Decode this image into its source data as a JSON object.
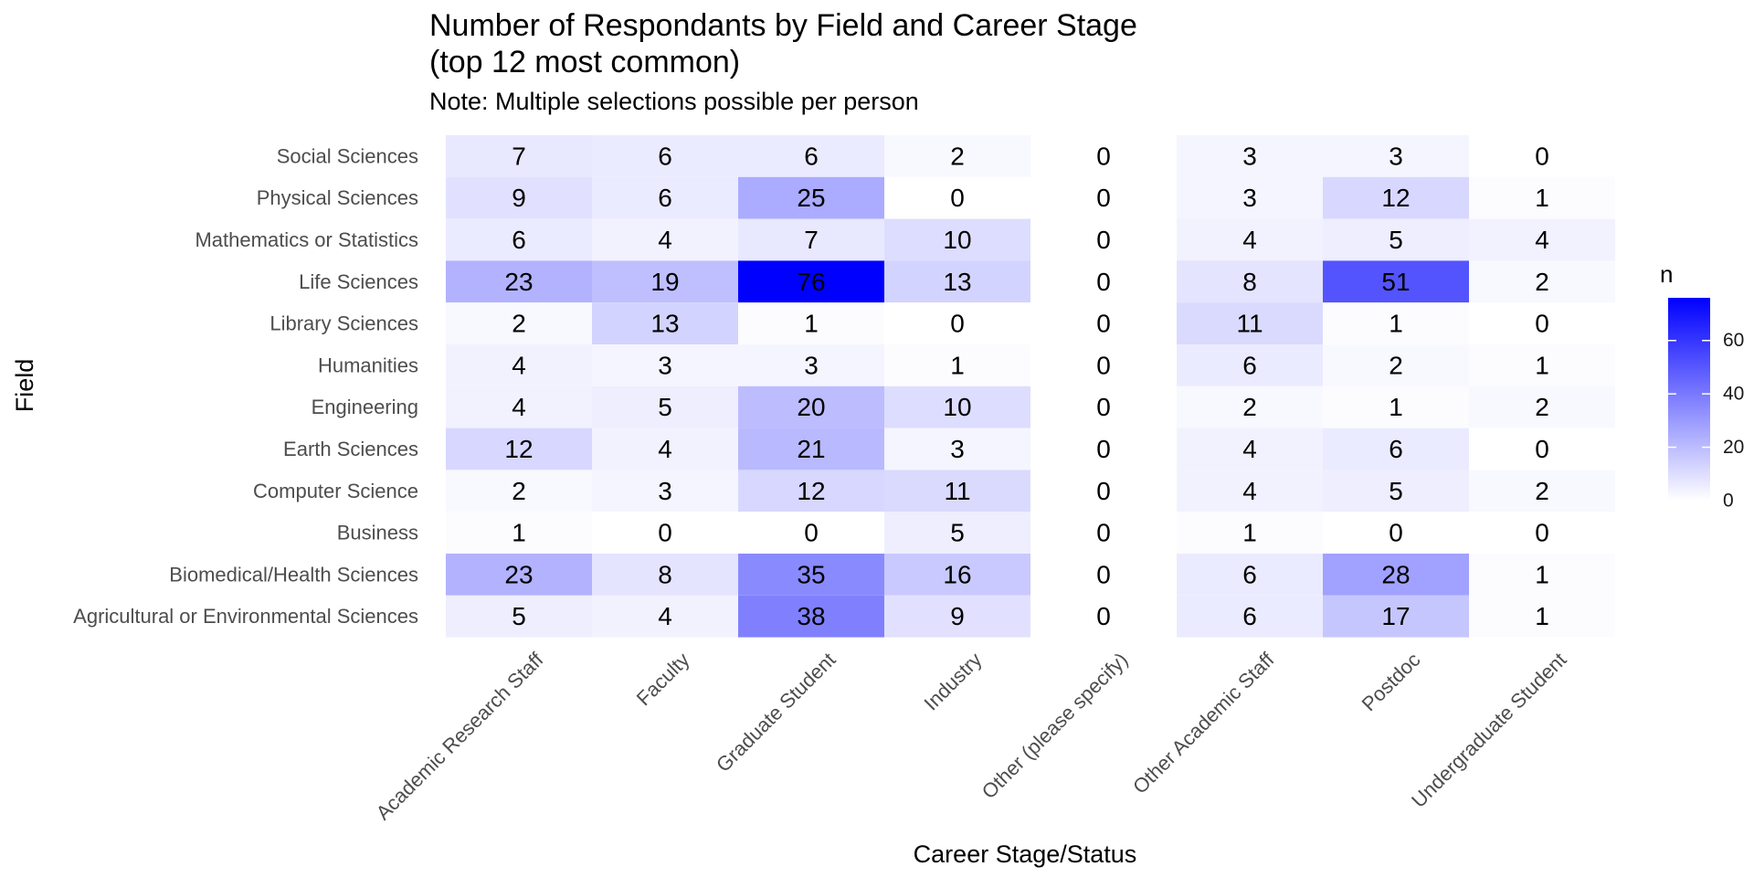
{
  "chart_data": {
    "type": "heatmap",
    "title_line1": "Number of Respondants by Field and Career Stage",
    "title_line2": "(top 12 most common)",
    "subtitle": "Note: Multiple selections possible per person",
    "xlabel": "Career Stage/Status",
    "ylabel": "Field",
    "x_categories": [
      "Academic Research Staff",
      "Faculty",
      "Graduate Student",
      "Industry",
      "Other (please specify)",
      "Other Academic Staff",
      "Postdoc",
      "Undergraduate Student"
    ],
    "y_categories": [
      "Social Sciences",
      "Physical Sciences",
      "Mathematics or Statistics",
      "Life Sciences",
      "Library Sciences",
      "Humanities",
      "Engineering",
      "Earth Sciences",
      "Computer Science",
      "Business",
      "Biomedical/Health Sciences",
      "Agricultural or Environmental Sciences"
    ],
    "values": [
      [
        7,
        6,
        6,
        2,
        0,
        3,
        3,
        0
      ],
      [
        9,
        6,
        25,
        0,
        0,
        3,
        12,
        1
      ],
      [
        6,
        4,
        7,
        10,
        0,
        4,
        5,
        4
      ],
      [
        23,
        19,
        76,
        13,
        0,
        8,
        51,
        2
      ],
      [
        2,
        13,
        1,
        0,
        0,
        11,
        1,
        0
      ],
      [
        4,
        3,
        3,
        1,
        0,
        6,
        2,
        1
      ],
      [
        4,
        5,
        20,
        10,
        0,
        2,
        1,
        2
      ],
      [
        12,
        4,
        21,
        3,
        0,
        4,
        6,
        0
      ],
      [
        2,
        3,
        12,
        11,
        0,
        4,
        5,
        2
      ],
      [
        1,
        0,
        0,
        5,
        0,
        1,
        0,
        0
      ],
      [
        23,
        8,
        35,
        16,
        0,
        6,
        28,
        1
      ],
      [
        5,
        4,
        38,
        9,
        0,
        6,
        17,
        1
      ]
    ],
    "color_scale": {
      "low": "#ffffff",
      "high": "#0000ff",
      "min": 0,
      "max": 76
    },
    "legend": {
      "title": "n",
      "ticks": [
        0,
        20,
        40,
        60
      ],
      "position": "right"
    }
  }
}
